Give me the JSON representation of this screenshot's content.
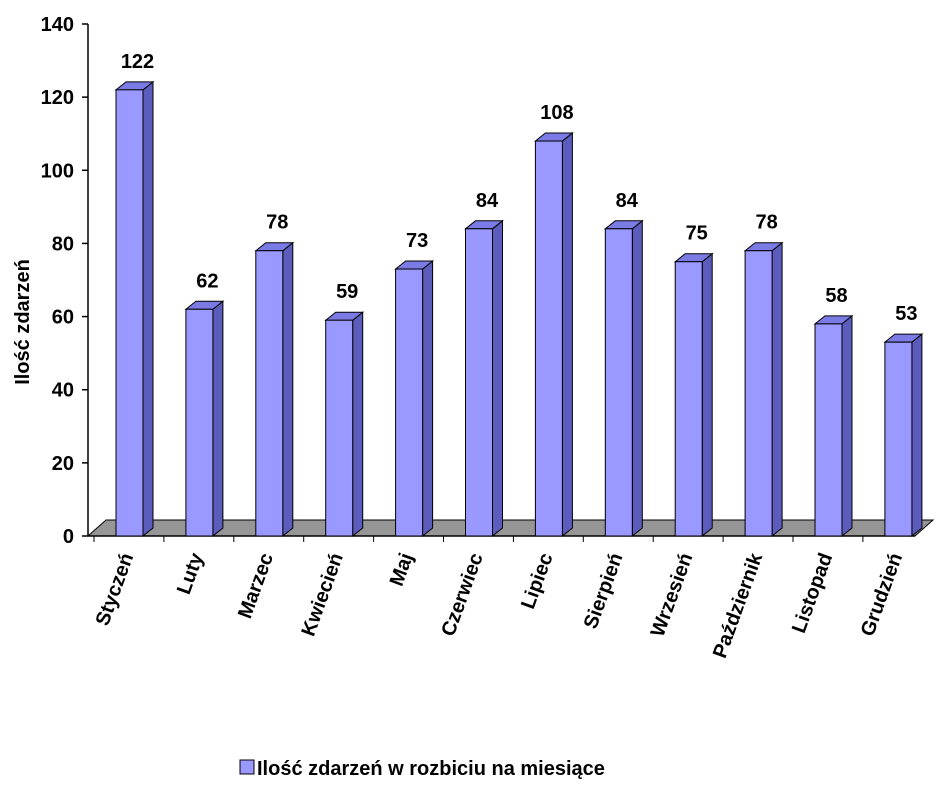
{
  "chart_data": {
    "type": "bar",
    "categories": [
      "Styczeń",
      "Luty",
      "Marzec",
      "Kwiecień",
      "Maj",
      "Czerwiec",
      "Lipiec",
      "Sierpień",
      "Wrzesień",
      "Październik",
      "Listopad",
      "Grudzień"
    ],
    "series": [
      {
        "name": "Ilość zdarzeń w rozbiciu na miesiące",
        "values": [
          122,
          62,
          78,
          59,
          73,
          84,
          108,
          84,
          75,
          78,
          58,
          53
        ]
      }
    ],
    "ylabel": "Ilość zdarzeń",
    "xlabel": "",
    "title": "",
    "ylim": [
      0,
      140
    ],
    "yticks": [
      0,
      20,
      40,
      60,
      80,
      100,
      120,
      140
    ],
    "grid": false,
    "legend_position": "bottom",
    "bar_color": "#9999ff",
    "bar_side_color": "#5c5cbd",
    "bar_top_color": "#7b7be6",
    "floor_color": "#969696"
  }
}
